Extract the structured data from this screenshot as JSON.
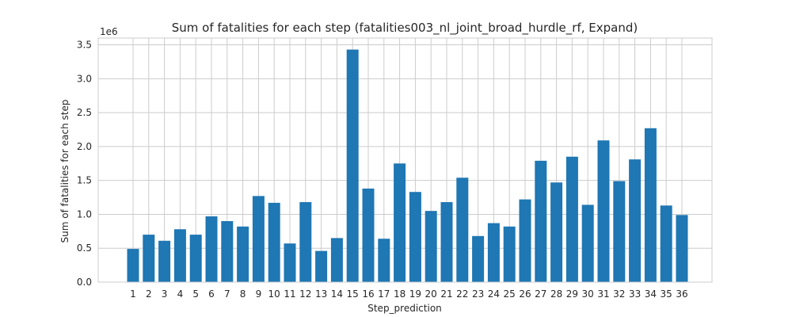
{
  "chart_data": {
    "type": "bar",
    "title": "Sum of fatalities for each step (fatalities003_nl_joint_broad_hurdle_rf, Expand)",
    "xlabel": "Step_prediction",
    "ylabel": "Sum of fatalities for each step",
    "y_offset_label": "1e6",
    "y_scale": 1000000,
    "ylim": [
      0,
      3.6
    ],
    "yticks": [
      "0.0",
      "0.5",
      "1.0",
      "1.5",
      "2.0",
      "2.5",
      "3.0",
      "3.5"
    ],
    "grid": true,
    "bar_color": "#1f77b4",
    "categories": [
      "1",
      "2",
      "3",
      "4",
      "5",
      "6",
      "7",
      "8",
      "9",
      "10",
      "11",
      "12",
      "13",
      "14",
      "15",
      "16",
      "17",
      "18",
      "19",
      "20",
      "21",
      "22",
      "23",
      "24",
      "25",
      "26",
      "27",
      "28",
      "29",
      "30",
      "31",
      "32",
      "33",
      "34",
      "35",
      "36"
    ],
    "values": [
      0.49,
      0.7,
      0.61,
      0.78,
      0.7,
      0.97,
      0.9,
      0.82,
      1.27,
      1.17,
      0.57,
      1.18,
      0.46,
      0.65,
      3.43,
      1.38,
      0.64,
      1.75,
      1.33,
      1.05,
      1.18,
      1.54,
      0.68,
      0.87,
      0.82,
      1.22,
      1.79,
      1.47,
      1.85,
      1.14,
      2.09,
      1.49,
      1.81,
      2.27,
      1.13,
      0.99
    ]
  }
}
